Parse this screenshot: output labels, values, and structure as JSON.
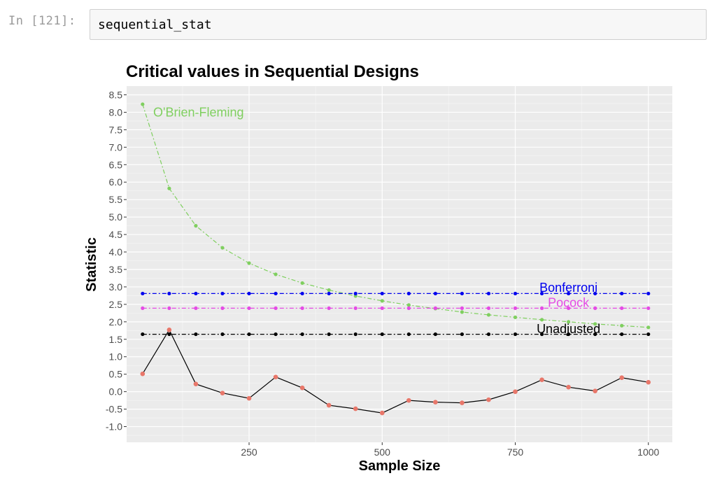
{
  "cell": {
    "prompt": "In [121]:",
    "code": "sequential_stat"
  },
  "chart_data": {
    "type": "line",
    "title": "Critical values in Sequential Designs",
    "xlabel": "Sample Size",
    "ylabel": "Statistic",
    "xlim": [
      20,
      1045
    ],
    "ylim": [
      -1.45,
      8.75
    ],
    "xticks": [
      250,
      500,
      750,
      1000
    ],
    "yticks": [
      -1.0,
      -0.5,
      0.0,
      0.5,
      1.0,
      1.5,
      2.0,
      2.5,
      3.0,
      3.5,
      4.0,
      4.5,
      5.0,
      5.5,
      6.0,
      6.5,
      7.0,
      7.5,
      8.0,
      8.5
    ],
    "ytick_labels": [
      "-1.0",
      "-0.5",
      "0.0",
      "0.5",
      "1.0",
      "1.5",
      "2.0",
      "2.5",
      "3.0",
      "3.5",
      "4.0",
      "4.5",
      "5.0",
      "5.5",
      "6.0",
      "6.5",
      "7.0",
      "7.5",
      "8.0",
      "8.5"
    ],
    "grid": true,
    "x": [
      50,
      100,
      150,
      200,
      250,
      300,
      350,
      400,
      450,
      500,
      550,
      600,
      650,
      700,
      750,
      800,
      850,
      900,
      950,
      1000
    ],
    "series": [
      {
        "name": "O'Brien-Fleming",
        "color": "#7fcf5f",
        "dash": "6,3,2,3",
        "label": {
          "text": "O'Brien-Fleming",
          "x": 70,
          "y": 8.0,
          "anchor": "start"
        },
        "values": [
          8.23,
          5.82,
          4.75,
          4.12,
          3.68,
          3.36,
          3.11,
          2.91,
          2.74,
          2.6,
          2.48,
          2.38,
          2.28,
          2.2,
          2.13,
          2.06,
          2.0,
          1.94,
          1.89,
          1.84
        ]
      },
      {
        "name": "Bonferroni",
        "color": "#0000ee",
        "dash": "6,3,2,3",
        "label": {
          "text": "Bonferroni",
          "x": 850,
          "y": 2.98,
          "anchor": "middle"
        },
        "values": [
          2.81,
          2.81,
          2.81,
          2.81,
          2.81,
          2.81,
          2.81,
          2.81,
          2.81,
          2.81,
          2.81,
          2.81,
          2.81,
          2.81,
          2.81,
          2.81,
          2.81,
          2.81,
          2.81,
          2.81
        ]
      },
      {
        "name": "Pocock",
        "color": "#e54be5",
        "dash": "6,3,2,3",
        "label": {
          "text": "Pocock",
          "x": 850,
          "y": 2.55,
          "anchor": "middle"
        },
        "values": [
          2.39,
          2.39,
          2.39,
          2.39,
          2.39,
          2.39,
          2.39,
          2.39,
          2.39,
          2.39,
          2.39,
          2.39,
          2.39,
          2.39,
          2.39,
          2.39,
          2.39,
          2.39,
          2.39,
          2.39
        ]
      },
      {
        "name": "Unadjusted",
        "color": "#000000",
        "dash": "6,3,2,3",
        "label": {
          "text": "Unadjusted",
          "x": 850,
          "y": 1.8,
          "anchor": "middle"
        },
        "values": [
          1.645,
          1.645,
          1.645,
          1.645,
          1.645,
          1.645,
          1.645,
          1.645,
          1.645,
          1.645,
          1.645,
          1.645,
          1.645,
          1.645,
          1.645,
          1.645,
          1.645,
          1.645,
          1.645,
          1.645
        ]
      },
      {
        "color": "#000000",
        "dash": "",
        "point_color": "#e8776a",
        "values": [
          0.51,
          1.77,
          0.22,
          -0.04,
          -0.19,
          0.42,
          0.11,
          -0.39,
          -0.49,
          -0.61,
          -0.25,
          -0.3,
          -0.32,
          -0.23,
          0.0,
          0.34,
          0.13,
          0.02,
          0.4,
          0.27
        ]
      }
    ]
  }
}
